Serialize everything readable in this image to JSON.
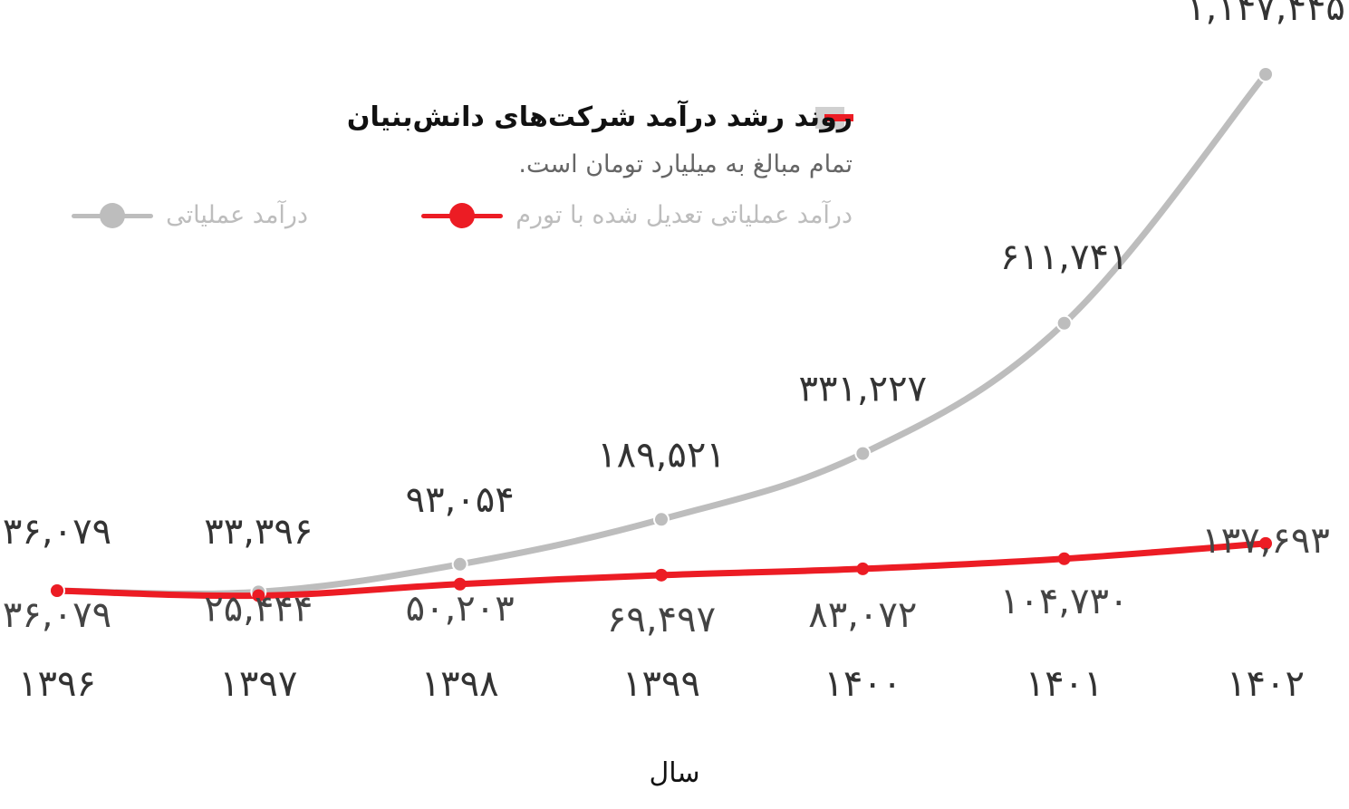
{
  "chart_data": {
    "type": "line",
    "title": "روند رشد درآمد شرکت‌های دانش‌بنیان",
    "subtitle": "تمام مبالغ به میلیارد تومان است.",
    "xlabel": "سال",
    "ylabel": "",
    "categories": [
      "۱۳۹۶",
      "۱۳۹۷",
      "۱۳۹۸",
      "۱۳۹۹",
      "۱۴۰۰",
      "۱۴۰۱",
      "۱۴۰۲"
    ],
    "series": [
      {
        "name": "درآمد عملیاتی",
        "color": "#bdbdbd",
        "values": [
          36079,
          33396,
          93054,
          189521,
          331227,
          611741,
          1147445
        ],
        "labels": [
          "۳۶,۰۷۹",
          "۳۳,۳۹۶",
          "۹۳,۰۵۴",
          "۱۸۹,۵۲۱",
          "۳۳۱,۲۲۷",
          "۶۱۱,۷۴۱",
          "۱,۱۴۷,۴۴۵"
        ]
      },
      {
        "name": "درآمد عملیاتی تعدیل شده با تورم",
        "color": "#ec1c24",
        "values": [
          36079,
          25444,
          50203,
          69497,
          83072,
          104730,
          137693
        ],
        "labels": [
          "۳۶,۰۷۹",
          "۲۵,۴۴۴",
          "۵۰,۲۰۳",
          "۶۹,۴۹۷",
          "۸۳,۰۷۲",
          "۱۰۴,۷۳۰",
          "۱۳۷,۶۹۳"
        ]
      }
    ],
    "legend_position": "top-left",
    "grid": false
  }
}
